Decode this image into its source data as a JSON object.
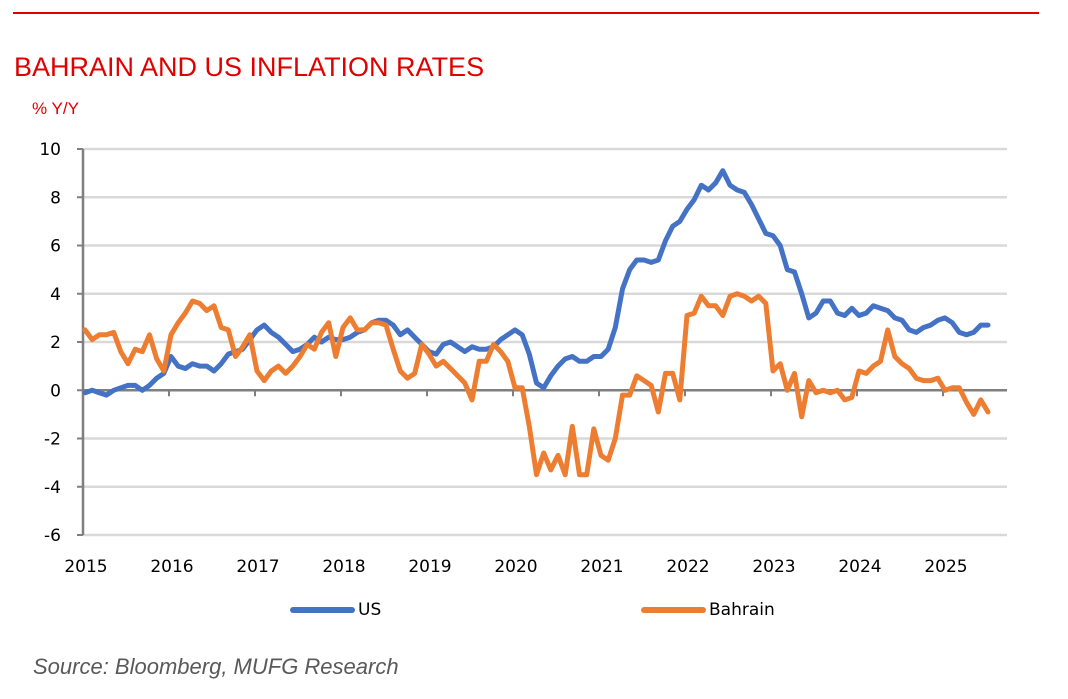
{
  "header": {
    "title": "BAHRAIN AND US INFLATION RATES",
    "unit": "% Y/Y"
  },
  "source": "Source: Bloomberg, MUFG Research",
  "chart_data": {
    "type": "line",
    "title": "BAHRAIN AND US INFLATION RATES",
    "xlabel": "",
    "ylabel": "% Y/Y",
    "ylim": [
      -6,
      10
    ],
    "yticks": [
      -6,
      -4,
      -2,
      0,
      2,
      4,
      6,
      8,
      10
    ],
    "xticks": [
      "2015",
      "2016",
      "2017",
      "2018",
      "2019",
      "2020",
      "2021",
      "2022",
      "2023",
      "2024",
      "2025"
    ],
    "x_start": "2015-01",
    "frequency": "monthly",
    "grid": true,
    "legend": "bottom",
    "series": [
      {
        "name": "US",
        "color": "#4472C4",
        "values": [
          -0.1,
          0.0,
          -0.1,
          -0.2,
          0.0,
          0.1,
          0.2,
          0.2,
          0.0,
          0.2,
          0.5,
          0.7,
          1.4,
          1.0,
          0.9,
          1.1,
          1.0,
          1.0,
          0.8,
          1.1,
          1.5,
          1.6,
          1.7,
          2.1,
          2.5,
          2.7,
          2.4,
          2.2,
          1.9,
          1.6,
          1.7,
          1.9,
          2.2,
          2.0,
          2.2,
          2.1,
          2.1,
          2.2,
          2.4,
          2.5,
          2.8,
          2.9,
          2.9,
          2.7,
          2.3,
          2.5,
          2.2,
          1.9,
          1.6,
          1.5,
          1.9,
          2.0,
          1.8,
          1.6,
          1.8,
          1.7,
          1.7,
          1.8,
          2.1,
          2.3,
          2.5,
          2.3,
          1.5,
          0.3,
          0.1,
          0.6,
          1.0,
          1.3,
          1.4,
          1.2,
          1.2,
          1.4,
          1.4,
          1.7,
          2.6,
          4.2,
          5.0,
          5.4,
          5.4,
          5.3,
          5.4,
          6.2,
          6.8,
          7.0,
          7.5,
          7.9,
          8.5,
          8.3,
          8.6,
          9.1,
          8.5,
          8.3,
          8.2,
          7.7,
          7.1,
          6.5,
          6.4,
          6.0,
          5.0,
          4.9,
          4.0,
          3.0,
          3.2,
          3.7,
          3.7,
          3.2,
          3.1,
          3.4,
          3.1,
          3.2,
          3.5,
          3.4,
          3.3,
          3.0,
          2.9,
          2.5,
          2.4,
          2.6,
          2.7,
          2.9,
          3.0,
          2.8,
          2.4,
          2.3,
          2.4,
          2.7,
          2.7
        ]
      },
      {
        "name": "Bahrain",
        "color": "#ED7D31",
        "values": [
          2.5,
          2.1,
          2.3,
          2.3,
          2.4,
          1.6,
          1.1,
          1.7,
          1.6,
          2.3,
          1.3,
          0.8,
          2.3,
          2.8,
          3.2,
          3.7,
          3.6,
          3.3,
          3.5,
          2.6,
          2.5,
          1.4,
          1.8,
          2.3,
          0.8,
          0.4,
          0.8,
          1.0,
          0.7,
          1.0,
          1.4,
          1.9,
          1.7,
          2.4,
          2.8,
          1.4,
          2.6,
          3.0,
          2.5,
          2.5,
          2.8,
          2.8,
          2.7,
          1.7,
          0.8,
          0.5,
          0.7,
          1.9,
          1.5,
          1.0,
          1.2,
          0.9,
          0.6,
          0.3,
          -0.4,
          1.2,
          1.2,
          1.9,
          1.6,
          1.2,
          0.1,
          0.1,
          -1.5,
          -3.5,
          -2.6,
          -3.3,
          -2.7,
          -3.5,
          -1.5,
          -3.5,
          -3.5,
          -1.6,
          -2.7,
          -2.9,
          -2.0,
          -0.2,
          -0.2,
          0.6,
          0.4,
          0.2,
          -0.9,
          0.7,
          0.7,
          -0.4,
          3.1,
          3.2,
          3.9,
          3.5,
          3.5,
          3.1,
          3.9,
          4.0,
          3.9,
          3.7,
          3.9,
          3.6,
          0.8,
          1.1,
          0.0,
          0.7,
          -1.1,
          0.4,
          -0.1,
          0.0,
          -0.1,
          0.0,
          -0.4,
          -0.3,
          0.8,
          0.7,
          1.0,
          1.2,
          2.5,
          1.4,
          1.1,
          0.9,
          0.5,
          0.4,
          0.4,
          0.5,
          0.0,
          0.1,
          0.1,
          -0.5,
          -1.0,
          -0.4,
          -0.9
        ]
      }
    ]
  }
}
